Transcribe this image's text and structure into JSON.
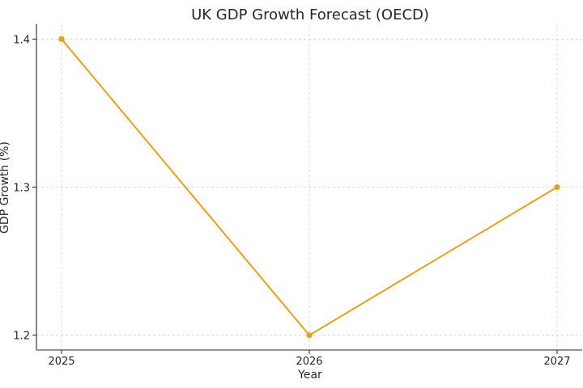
{
  "chart_data": {
    "type": "line",
    "title": "UK GDP Growth Forecast (OECD)",
    "xlabel": "Year",
    "ylabel": "GDP Growth (%)",
    "x": [
      "2025",
      "2026",
      "2027"
    ],
    "series": [
      {
        "values": [
          1.4,
          1.2,
          1.3
        ],
        "color": "#e6a117"
      }
    ],
    "ylim": [
      1.19,
      1.41
    ],
    "yticks": [
      1.2,
      1.3,
      1.4
    ],
    "ytick_labels": [
      "1.2",
      "1.3",
      "1.4"
    ],
    "grid": true,
    "marker": "circle"
  }
}
